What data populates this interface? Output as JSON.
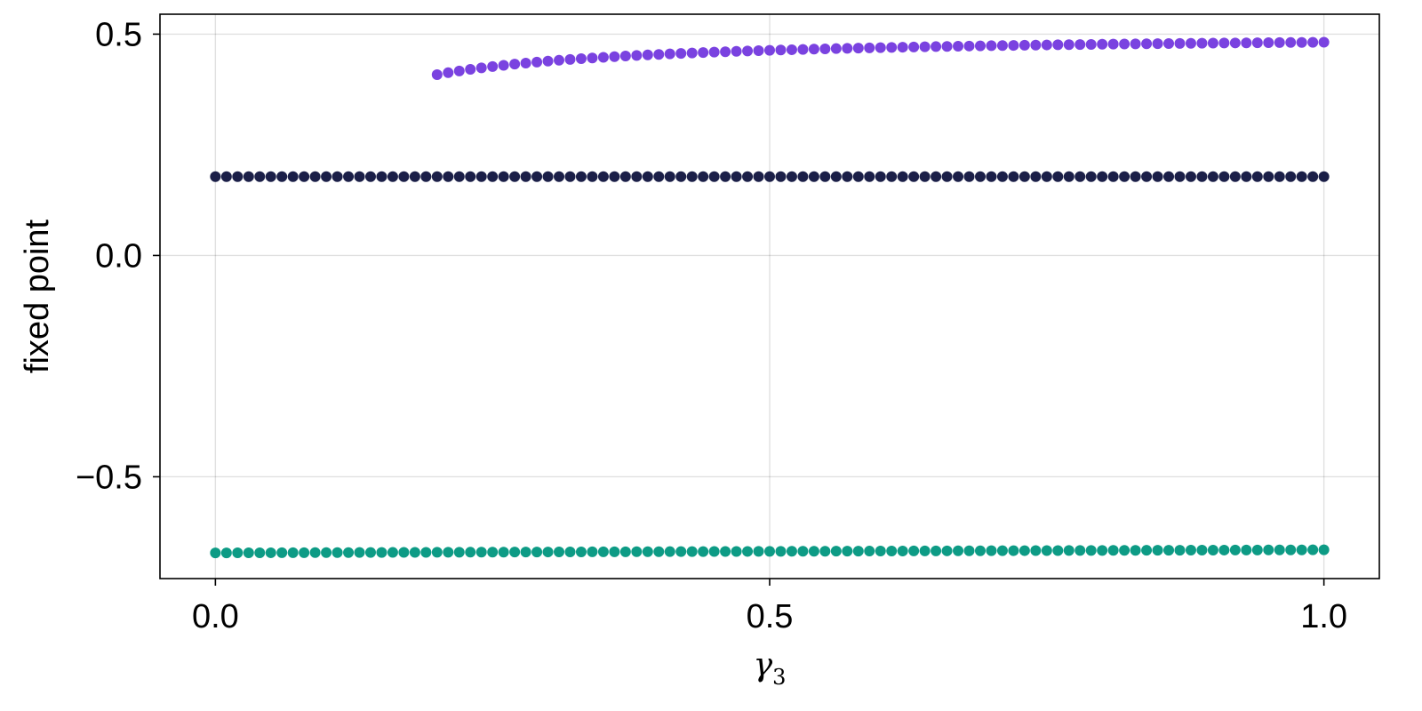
{
  "chart_data": {
    "type": "scatter",
    "title": "",
    "xlabel": {
      "symbol": "γ",
      "subscript": "3"
    },
    "ylabel": "fixed point",
    "xlim": [
      -0.05,
      1.05
    ],
    "ylim": [
      -0.73,
      0.545
    ],
    "xticks": [
      0.0,
      0.5,
      1.0
    ],
    "xtick_labels": [
      "0.0",
      "0.5",
      "1.0"
    ],
    "yticks": [
      -0.5,
      0.0,
      0.5
    ],
    "ytick_labels": [
      "−0.5",
      "0.0",
      "0.5"
    ],
    "grid": true,
    "legend": "none",
    "marker_size_px": 6,
    "series": [
      {
        "color": "#7a42e0",
        "x_range": [
          0.2,
          1.0
        ],
        "num_points": 81,
        "formula": "0.5 - 0.0183 / x",
        "description_values": {
          "at_0.2": 0.408,
          "at_0.5": 0.463,
          "at_1.0": 0.482
        }
      },
      {
        "color": "#1b1f48",
        "x_range": [
          0.0,
          1.0
        ],
        "num_points": 101,
        "y": 0.178
      },
      {
        "color": "#0d9b85",
        "x_range": [
          0.0,
          1.0
        ],
        "num_points": 101,
        "y_start": -0.672,
        "y_end": -0.665
      }
    ]
  }
}
